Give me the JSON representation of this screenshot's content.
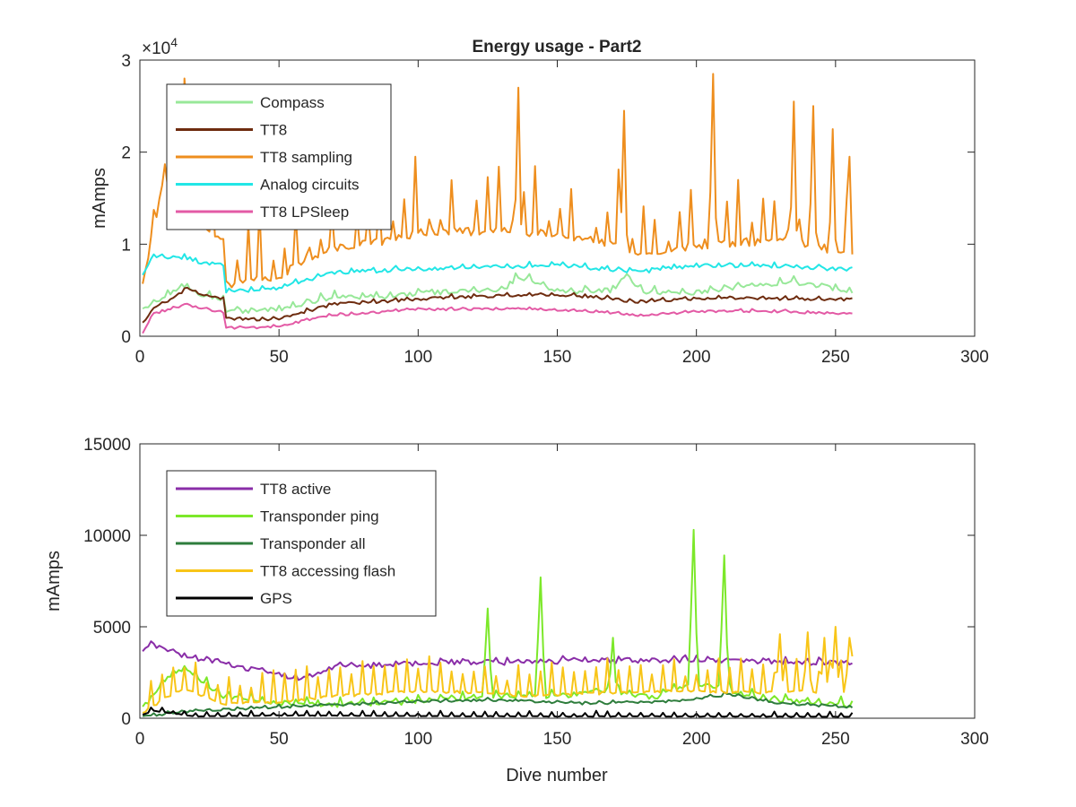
{
  "chart_data": [
    {
      "type": "line",
      "title": "Energy usage - Part2",
      "xlabel": "",
      "ylabel": "mAmps",
      "exponent_label": "×10",
      "exponent_power": "4",
      "xlim": [
        0,
        300
      ],
      "ylim": [
        0,
        30000
      ],
      "xticks": [
        0,
        50,
        100,
        150,
        200,
        250,
        300
      ],
      "yticks": [
        0,
        10000,
        20000,
        30000
      ],
      "ytick_labels": [
        "0",
        "1",
        "2",
        "3"
      ],
      "legend_position": "top-left",
      "grid": false,
      "n_points": 256,
      "series": [
        {
          "name": "Compass",
          "color": "#98e899",
          "key": [
            [
              1,
              2800
            ],
            [
              10,
              4500
            ],
            [
              17,
              5500
            ],
            [
              22,
              4300
            ],
            [
              30,
              4000
            ],
            [
              31,
              2700
            ],
            [
              50,
              2900
            ],
            [
              60,
              3600
            ],
            [
              70,
              4300
            ],
            [
              90,
              4300
            ],
            [
              100,
              4700
            ],
            [
              130,
              4900
            ],
            [
              136,
              6500
            ],
            [
              150,
              4800
            ],
            [
              170,
              5000
            ],
            [
              175,
              6600
            ],
            [
              180,
              4800
            ],
            [
              200,
              4700
            ],
            [
              210,
              5200
            ],
            [
              235,
              5800
            ],
            [
              250,
              5200
            ],
            [
              256,
              4600
            ]
          ],
          "noise": 500,
          "period": 5,
          "spike": 500
        },
        {
          "name": "TT8",
          "color": "#6e2c0f",
          "key": [
            [
              1,
              1400
            ],
            [
              5,
              3000
            ],
            [
              12,
              4200
            ],
            [
              17,
              5200
            ],
            [
              22,
              4500
            ],
            [
              30,
              4100
            ],
            [
              31,
              1900
            ],
            [
              50,
              1800
            ],
            [
              60,
              2700
            ],
            [
              70,
              3500
            ],
            [
              90,
              3800
            ],
            [
              110,
              4200
            ],
            [
              140,
              4500
            ],
            [
              160,
              4300
            ],
            [
              180,
              3700
            ],
            [
              200,
              4100
            ],
            [
              220,
              4100
            ],
            [
              256,
              4000
            ]
          ],
          "noise": 300,
          "period": 4,
          "spike": 200
        },
        {
          "name": "TT8 sampling",
          "color": "#ee8e1e",
          "key": [
            [
              1,
              5500
            ],
            [
              4,
              10500
            ],
            [
              8,
              16000
            ],
            [
              15,
              17500
            ],
            [
              16,
              28000
            ],
            [
              20,
              13000
            ],
            [
              25,
              11000
            ],
            [
              30,
              11000
            ],
            [
              31,
              5500
            ],
            [
              40,
              6000
            ],
            [
              50,
              6500
            ],
            [
              60,
              8500
            ],
            [
              70,
              9500
            ],
            [
              90,
              10500
            ],
            [
              100,
              11200
            ],
            [
              130,
              11500
            ],
            [
              150,
              11000
            ],
            [
              170,
              10000
            ],
            [
              180,
              9000
            ],
            [
              200,
              9800
            ],
            [
              230,
              10500
            ],
            [
              256,
              9000
            ]
          ],
          "noise": 900,
          "period": 4.3,
          "spike": 7500,
          "peaks": [
            [
              16,
              28000
            ],
            [
              136,
              27000
            ],
            [
              174,
              24500
            ],
            [
              206,
              28500
            ],
            [
              235,
              25500
            ],
            [
              242,
              25000
            ],
            [
              249,
              22500
            ],
            [
              255,
              19500
            ]
          ]
        },
        {
          "name": "Analog circuits",
          "color": "#22e6e6",
          "key": [
            [
              1,
              6600
            ],
            [
              5,
              8700
            ],
            [
              17,
              8500
            ],
            [
              22,
              8000
            ],
            [
              30,
              7700
            ],
            [
              31,
              4800
            ],
            [
              50,
              5200
            ],
            [
              60,
              6100
            ],
            [
              70,
              6900
            ],
            [
              100,
              7300
            ],
            [
              150,
              7700
            ],
            [
              180,
              7000
            ],
            [
              200,
              7700
            ],
            [
              230,
              7600
            ],
            [
              256,
              7200
            ]
          ],
          "noise": 400,
          "period": 4,
          "spike": 300
        },
        {
          "name": "TT8 LPSleep",
          "color": "#e35aa5",
          "key": [
            [
              1,
              300
            ],
            [
              5,
              2400
            ],
            [
              17,
              3500
            ],
            [
              22,
              3000
            ],
            [
              30,
              2600
            ],
            [
              31,
              900
            ],
            [
              50,
              1000
            ],
            [
              60,
              1800
            ],
            [
              70,
              2300
            ],
            [
              100,
              2900
            ],
            [
              140,
              3000
            ],
            [
              170,
              2500
            ],
            [
              180,
              2200
            ],
            [
              200,
              2700
            ],
            [
              230,
              2700
            ],
            [
              256,
              2400
            ]
          ],
          "noise": 250,
          "period": 4,
          "spike": 150
        }
      ]
    },
    {
      "type": "line",
      "title": "",
      "xlabel": "Dive number",
      "ylabel": "mAmps",
      "xlim": [
        0,
        300
      ],
      "ylim": [
        0,
        15000
      ],
      "xticks": [
        0,
        50,
        100,
        150,
        200,
        250,
        300
      ],
      "yticks": [
        0,
        5000,
        10000,
        15000
      ],
      "ytick_labels": [
        "0",
        "5000",
        "10000",
        "15000"
      ],
      "legend_position": "top-left",
      "grid": false,
      "n_points": 256,
      "series": [
        {
          "name": "TT8 active",
          "color": "#8a2ea8",
          "key": [
            [
              1,
              3600
            ],
            [
              4,
              4100
            ],
            [
              15,
              3400
            ],
            [
              30,
              3000
            ],
            [
              40,
              2700
            ],
            [
              58,
              2100
            ],
            [
              70,
              2800
            ],
            [
              100,
              3000
            ],
            [
              150,
              3100
            ],
            [
              200,
              3200
            ],
            [
              256,
              3000
            ]
          ],
          "noise": 300,
          "period": 4,
          "spike": 150
        },
        {
          "name": "Transponder ping",
          "color": "#7ce82a",
          "key": [
            [
              1,
              600
            ],
            [
              5,
              1200
            ],
            [
              10,
              2200
            ],
            [
              16,
              2700
            ],
            [
              30,
              1200
            ],
            [
              50,
              800
            ],
            [
              70,
              700
            ],
            [
              100,
              900
            ],
            [
              125,
              1200
            ],
            [
              150,
              1200
            ],
            [
              170,
              1500
            ],
            [
              185,
              1100
            ],
            [
              195,
              1700
            ],
            [
              200,
              1900
            ],
            [
              210,
              1500
            ],
            [
              225,
              1000
            ],
            [
              256,
              700
            ]
          ],
          "noise": 250,
          "period": 4,
          "spike": 300,
          "peaks": [
            [
              125,
              6000
            ],
            [
              144,
              7700
            ],
            [
              170,
              4400
            ],
            [
              199,
              10300
            ],
            [
              210,
              8900
            ]
          ]
        },
        {
          "name": "Transponder all",
          "color": "#2e7d3c",
          "key": [
            [
              1,
              100
            ],
            [
              20,
              400
            ],
            [
              50,
              600
            ],
            [
              100,
              900
            ],
            [
              130,
              1000
            ],
            [
              160,
              800
            ],
            [
              190,
              900
            ],
            [
              212,
              1300
            ],
            [
              230,
              800
            ],
            [
              256,
              600
            ]
          ],
          "noise": 120,
          "period": 5,
          "spike": 100
        },
        {
          "name": "TT8 accessing flash",
          "color": "#f8c518",
          "key": [
            [
              1,
              300
            ],
            [
              10,
              1200
            ],
            [
              16,
              1600
            ],
            [
              30,
              800
            ],
            [
              50,
              900
            ],
            [
              70,
              1200
            ],
            [
              100,
              1500
            ],
            [
              120,
              1400
            ],
            [
              140,
              1200
            ],
            [
              170,
              1400
            ],
            [
              200,
              1500
            ],
            [
              220,
              1400
            ],
            [
              256,
              1500
            ]
          ],
          "noise": 150,
          "period": 4,
          "spike": 1600,
          "peaks": [
            [
              230,
              4600
            ],
            [
              240,
              4700
            ],
            [
              246,
              4400
            ],
            [
              250,
              5000
            ],
            [
              255,
              4400
            ]
          ]
        },
        {
          "name": "GPS",
          "color": "#000000",
          "key": [
            [
              1,
              200
            ],
            [
              5,
              400
            ],
            [
              10,
              300
            ],
            [
              20,
              100
            ],
            [
              50,
              150
            ],
            [
              100,
              120
            ],
            [
              150,
              100
            ],
            [
              200,
              100
            ],
            [
              256,
              80
            ]
          ],
          "noise": 30,
          "period": 4,
          "spike": 250
        }
      ]
    }
  ]
}
